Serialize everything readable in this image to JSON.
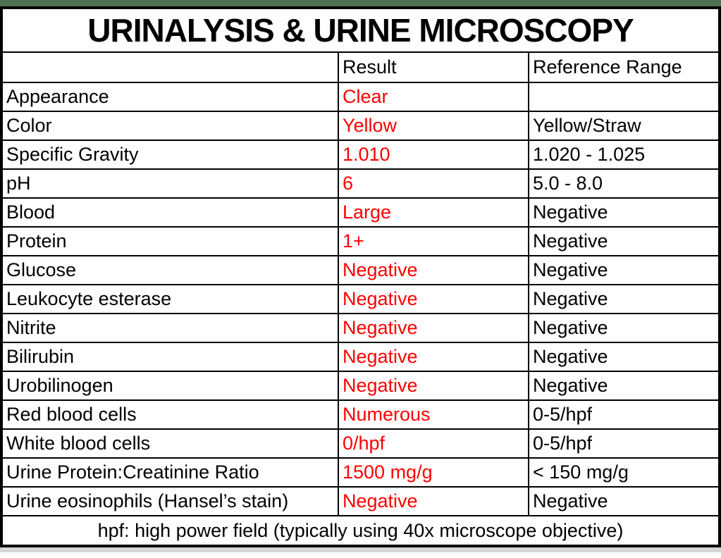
{
  "page": {
    "accent_bar_color": "#4e7151",
    "bottom_strip_color": "#d6d6d6",
    "result_color": "#ff0000",
    "text_color": "#000000",
    "border_color": "#000000"
  },
  "table": {
    "title": "URINALYSIS & URINE MICROSCOPY",
    "headers": [
      "",
      "Result",
      "Reference Range"
    ],
    "rows": [
      {
        "test": "Appearance",
        "result": "Clear",
        "reference": ""
      },
      {
        "test": "Color",
        "result": "Yellow",
        "reference": "Yellow/Straw"
      },
      {
        "test": "Specific Gravity",
        "result": "1.010",
        "reference": "1.020 - 1.025"
      },
      {
        "test": "pH",
        "result": "6",
        "reference": "5.0 - 8.0"
      },
      {
        "test": "Blood",
        "result": "Large",
        "reference": "Negative"
      },
      {
        "test": "Protein",
        "result": "1+",
        "reference": "Negative"
      },
      {
        "test": "Glucose",
        "result": "Negative",
        "reference": "Negative"
      },
      {
        "test": "Leukocyte esterase",
        "result": "Negative",
        "reference": "Negative"
      },
      {
        "test": "Nitrite",
        "result": "Negative",
        "reference": "Negative"
      },
      {
        "test": "Bilirubin",
        "result": "Negative",
        "reference": "Negative"
      },
      {
        "test": "Urobilinogen",
        "result": "Negative",
        "reference": "Negative"
      },
      {
        "test": "Red blood cells",
        "result": "Numerous",
        "reference": "0-5/hpf"
      },
      {
        "test": "White blood cells",
        "result": "0/hpf",
        "reference": "0-5/hpf"
      },
      {
        "test": "Urine Protein:Creatinine Ratio",
        "result": "1500 mg/g",
        "reference": "< 150 mg/g"
      },
      {
        "test": "Urine eosinophils (Hansel’s stain)",
        "result": "Negative",
        "reference": "Negative"
      }
    ],
    "footnote": "hpf: high power field (typically using 40x microscope objective)"
  }
}
